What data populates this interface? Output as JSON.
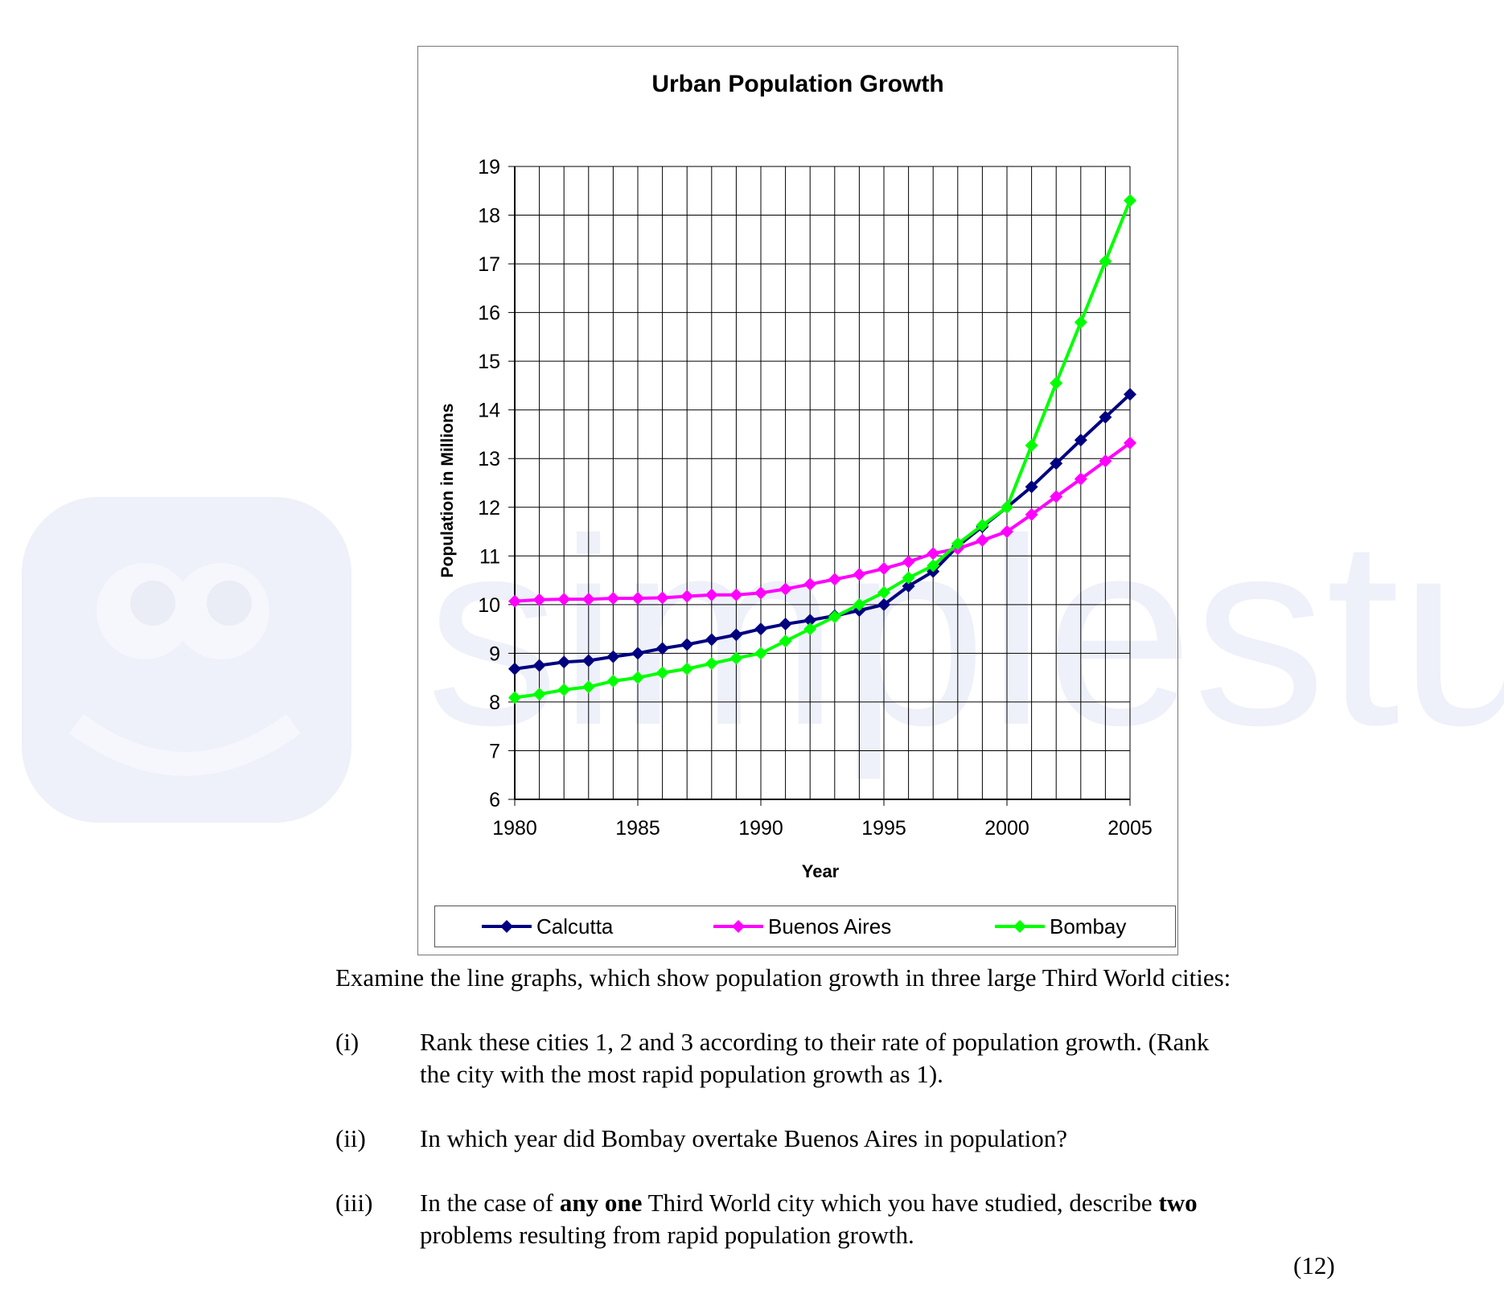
{
  "chart_data": {
    "type": "line",
    "title": "Urban Population Growth",
    "xlabel": "Year",
    "ylabel": "Population in Millions",
    "xlim": [
      1980,
      2005
    ],
    "ylim": [
      6,
      19
    ],
    "x_ticks": [
      1980,
      1985,
      1990,
      1995,
      2000,
      2005
    ],
    "y_ticks": [
      6,
      7,
      8,
      9,
      10,
      11,
      12,
      13,
      14,
      15,
      16,
      17,
      18,
      19
    ],
    "grid": true,
    "legend_position": "bottom",
    "x": [
      1980,
      1981,
      1982,
      1983,
      1984,
      1985,
      1986,
      1987,
      1988,
      1989,
      1990,
      1991,
      1992,
      1993,
      1994,
      1995,
      1996,
      1997,
      1998,
      1999,
      2000,
      2001,
      2002,
      2003,
      2004,
      2005
    ],
    "series": [
      {
        "name": "Calcutta",
        "color": "#000080",
        "values": [
          8.68,
          8.75,
          8.82,
          8.85,
          8.93,
          9.0,
          9.1,
          9.18,
          9.28,
          9.38,
          9.5,
          9.6,
          9.68,
          9.77,
          9.88,
          10.0,
          10.38,
          10.68,
          11.2,
          11.6,
          12.0,
          12.42,
          12.9,
          13.38,
          13.85,
          14.32
        ]
      },
      {
        "name": "Buenos Aires",
        "color": "#ff00ff",
        "values": [
          10.07,
          10.1,
          10.11,
          10.11,
          10.13,
          10.13,
          10.14,
          10.17,
          10.2,
          10.2,
          10.24,
          10.32,
          10.42,
          10.52,
          10.62,
          10.74,
          10.88,
          11.05,
          11.15,
          11.32,
          11.5,
          11.85,
          12.22,
          12.58,
          12.95,
          13.32
        ]
      },
      {
        "name": "Bombay",
        "color": "#00ff00",
        "values": [
          8.09,
          8.16,
          8.25,
          8.31,
          8.43,
          8.5,
          8.6,
          8.68,
          8.79,
          8.9,
          9.0,
          9.25,
          9.5,
          9.75,
          10.0,
          10.25,
          10.55,
          10.8,
          11.25,
          11.63,
          12.0,
          13.27,
          14.55,
          15.8,
          17.05,
          18.3
        ]
      }
    ]
  },
  "questions": {
    "intro": "Examine the line graphs, which show population growth in three large Third World cities:",
    "q1_num": "(i)",
    "q1_line1": "Rank these cities 1, 2 and 3 according to their rate of population growth.  (Rank",
    "q1_line2": "the city with the most rapid population growth as 1).",
    "q2_num": "(ii)",
    "q2_text": "In which year did Bombay overtake Buenos Aires in population?",
    "q3_num": "(iii)",
    "q3_a": "In the case of ",
    "q3_b": "any one",
    "q3_c": " Third World city which you have studied, describe ",
    "q3_d": "two",
    "q3_line2": "problems resulting from rapid population growth.",
    "marks": "(12)"
  },
  "watermark": {
    "text": "simplestudy",
    "color": "#eef0fa"
  }
}
